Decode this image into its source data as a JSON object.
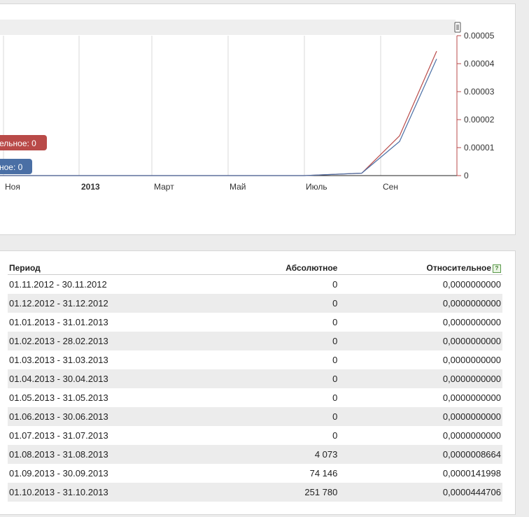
{
  "chart_data": {
    "type": "line",
    "x_ticks": [
      "Ноя",
      "2013",
      "Март",
      "Май",
      "Июль",
      "Сен"
    ],
    "y_ticks": [
      "0",
      "0.00001",
      "0.00002",
      "0.00003",
      "0.00004",
      "0.00005"
    ],
    "ylim": [
      0,
      5e-05
    ],
    "x": [
      "2012-11",
      "2012-12",
      "2013-01",
      "2013-02",
      "2013-03",
      "2013-04",
      "2013-05",
      "2013-06",
      "2013-07",
      "2013-08",
      "2013-09",
      "2013-10"
    ],
    "series": [
      {
        "name": "Относительное",
        "color": "#b94a48",
        "values": [
          0,
          0,
          0,
          0,
          0,
          0,
          0,
          0,
          0,
          8.664e-07,
          1.41998e-05,
          4.44706e-05
        ]
      },
      {
        "name": "Абсолютное",
        "color": "#4a6fa5",
        "values": [
          0,
          0,
          0,
          0,
          0,
          0,
          0,
          0,
          0,
          8.664e-07,
          1.22e-05,
          4.17e-05
        ]
      }
    ],
    "badges": {
      "relative": "ельное: 0",
      "absolute": "ное: 0"
    },
    "grid": true
  },
  "table": {
    "headers": {
      "period": "Период",
      "absolute": "Абсолютное",
      "relative": "Относительное",
      "help": "?"
    },
    "rows": [
      {
        "period": "01.11.2012 - 30.11.2012",
        "absolute": "0",
        "relative": "0,0000000000"
      },
      {
        "period": "01.12.2012 - 31.12.2012",
        "absolute": "0",
        "relative": "0,0000000000"
      },
      {
        "period": "01.01.2013 - 31.01.2013",
        "absolute": "0",
        "relative": "0,0000000000"
      },
      {
        "period": "01.02.2013 - 28.02.2013",
        "absolute": "0",
        "relative": "0,0000000000"
      },
      {
        "period": "01.03.2013 - 31.03.2013",
        "absolute": "0",
        "relative": "0,0000000000"
      },
      {
        "period": "01.04.2013 - 30.04.2013",
        "absolute": "0",
        "relative": "0,0000000000"
      },
      {
        "period": "01.05.2013 - 31.05.2013",
        "absolute": "0",
        "relative": "0,0000000000"
      },
      {
        "period": "01.06.2013 - 30.06.2013",
        "absolute": "0",
        "relative": "0,0000000000"
      },
      {
        "period": "01.07.2013 - 31.07.2013",
        "absolute": "0",
        "relative": "0,0000000000"
      },
      {
        "period": "01.08.2013 - 31.08.2013",
        "absolute": "4 073",
        "relative": "0,0000008664"
      },
      {
        "period": "01.09.2013 - 30.09.2013",
        "absolute": "74 146",
        "relative": "0,0000141998"
      },
      {
        "period": "01.10.2013 - 31.10.2013",
        "absolute": "251 780",
        "relative": "0,0000444706"
      }
    ]
  }
}
